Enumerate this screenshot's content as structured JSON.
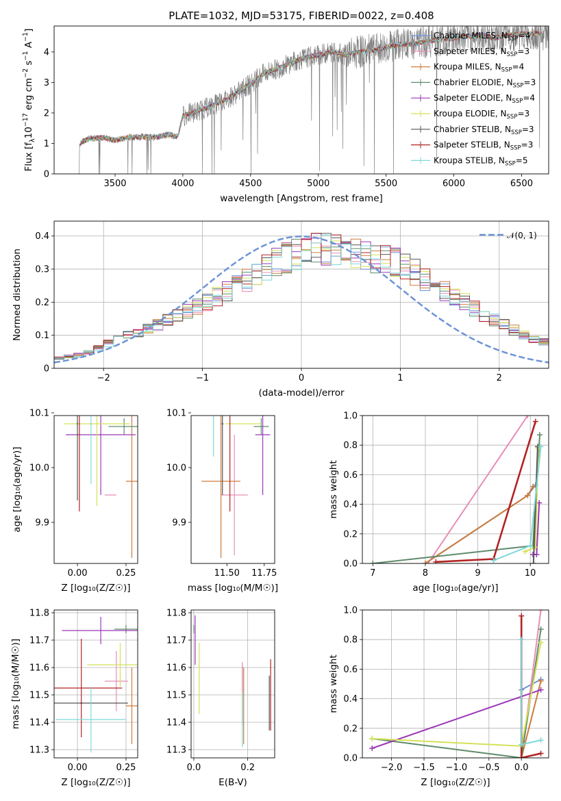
{
  "figure": {
    "title": "PLATE=1032, MJD=53175, FIBERID=0022, z=0.408"
  },
  "series_styles": [
    {
      "name": "Chabrier MILES, N_SSP=4",
      "label_main": "Chabrier MILES, N",
      "sub": "SSP",
      "label_tail": "=4",
      "color": "#6b93d6"
    },
    {
      "name": "Salpeter MILES, N_SSP=3",
      "label_main": "Salpeter MILES, N",
      "sub": "SSP",
      "label_tail": "=3",
      "color": "#e88cb5"
    },
    {
      "name": "Kroupa MILES, N_SSP=4",
      "label_main": "Kroupa MILES, N",
      "sub": "SSP",
      "label_tail": "=4",
      "color": "#cd7b3a"
    },
    {
      "name": "Chabrier ELODIE, N_SSP=3",
      "label_main": "Chabrier ELODIE, N",
      "sub": "SSP",
      "label_tail": "=3",
      "color": "#5f8a6a"
    },
    {
      "name": "Salpeter ELODIE, N_SSP=4",
      "label_main": "Salpeter ELODIE, N",
      "sub": "SSP",
      "label_tail": "=4",
      "color": "#9b36b7"
    },
    {
      "name": "Kroupa ELODIE, N_SSP=3",
      "label_main": "Kroupa ELODIE, N",
      "sub": "SSP",
      "label_tail": "=3",
      "color": "#d4e157"
    },
    {
      "name": "Chabrier STELIB, N_SSP=3",
      "label_main": "Chabrier STELIB, N",
      "sub": "SSP",
      "label_tail": "=3",
      "color": "#555555"
    },
    {
      "name": "Salpeter STELIB, N_SSP=3",
      "label_main": "Salpeter STELIB, N",
      "sub": "SSP",
      "label_tail": "=3",
      "color": "#b22222"
    },
    {
      "name": "Kroupa STELIB, N_SSP=5",
      "label_main": "Kroupa STELIB, N",
      "sub": "SSP",
      "label_tail": "=5",
      "color": "#7fd8d8"
    }
  ],
  "chart_data": [
    {
      "id": "spectrum",
      "type": "line",
      "title": "PLATE=1032, MJD=53175, FIBERID=0022, z=0.408",
      "xlabel": "wavelength [Angstrom, rest frame]",
      "ylabel_main": "Flux [f",
      "ylabel_sub": "λ",
      "ylabel_tail": "10",
      "ylabel_sup": "−17",
      "ylabel_rest": " erg cm",
      "ylabel_sup2": "−2",
      "ylabel_rest2": " s",
      "ylabel_sup3": "−1",
      "ylabel_rest3": " A",
      "ylabel_sup4": "−1",
      "ylabel_end": "]",
      "xlim": [
        3050,
        6700
      ],
      "ylim": [
        0,
        4.85
      ],
      "xticks": [
        3500,
        4000,
        4500,
        5000,
        5500,
        6000,
        6500
      ],
      "yticks": [
        0,
        1,
        2,
        3,
        4
      ],
      "grid": false,
      "legend_position": "top-right",
      "observed_color": "#808080",
      "continuum_anchor_points": [
        [
          3240,
          1.0
        ],
        [
          3300,
          1.15
        ],
        [
          3400,
          1.2
        ],
        [
          3500,
          1.1
        ],
        [
          3600,
          1.2
        ],
        [
          3700,
          1.22
        ],
        [
          3800,
          1.2
        ],
        [
          3900,
          1.3
        ],
        [
          3960,
          1.2
        ],
        [
          4000,
          1.9
        ],
        [
          4100,
          2.05
        ],
        [
          4200,
          2.2
        ],
        [
          4300,
          2.4
        ],
        [
          4400,
          2.65
        ],
        [
          4500,
          2.95
        ],
        [
          4600,
          3.3
        ],
        [
          4700,
          3.45
        ],
        [
          4800,
          3.65
        ],
        [
          4900,
          3.8
        ],
        [
          5000,
          3.9
        ],
        [
          5100,
          4.0
        ],
        [
          5200,
          3.9
        ],
        [
          5300,
          4.0
        ],
        [
          5400,
          4.05
        ],
        [
          5500,
          4.15
        ],
        [
          5600,
          4.25
        ],
        [
          5700,
          4.25
        ],
        [
          5800,
          4.35
        ],
        [
          5900,
          4.4
        ],
        [
          6000,
          4.45
        ],
        [
          6100,
          4.5
        ],
        [
          6200,
          4.55
        ],
        [
          6300,
          4.45
        ],
        [
          6400,
          4.55
        ],
        [
          6500,
          4.6
        ],
        [
          6600,
          4.6
        ]
      ]
    },
    {
      "id": "residuals",
      "type": "area",
      "title": "",
      "xlabel": "(data-model)/error",
      "ylabel": "Normed distribution",
      "xlim": [
        -2.5,
        2.5
      ],
      "ylim": [
        0,
        0.445
      ],
      "xticks": [
        -2,
        -1,
        0,
        1,
        2
      ],
      "xtick_labels": [
        "−2",
        "−1",
        "0",
        "1",
        "2"
      ],
      "yticks": [
        0.0,
        0.1,
        0.2,
        0.3,
        0.4
      ],
      "grid": true,
      "legend_position": "top-right",
      "reference_curve": {
        "name": "N(0,1)",
        "label": "𝒩(0, 1)",
        "color": "#6b93d6",
        "style": "dashed"
      },
      "bin_width": 0.1,
      "series_profile": [
        0.03,
        0.035,
        0.04,
        0.05,
        0.06,
        0.075,
        0.09,
        0.1,
        0.11,
        0.12,
        0.13,
        0.15,
        0.16,
        0.17,
        0.185,
        0.2,
        0.215,
        0.235,
        0.25,
        0.27,
        0.29,
        0.305,
        0.32,
        0.335,
        0.345,
        0.355,
        0.36,
        0.36,
        0.355,
        0.35,
        0.345,
        0.34,
        0.335,
        0.33,
        0.32,
        0.305,
        0.29,
        0.27,
        0.25,
        0.23,
        0.215,
        0.2,
        0.18,
        0.16,
        0.145,
        0.13,
        0.115,
        0.1,
        0.09,
        0.08
      ]
    },
    {
      "id": "age-vs-Z",
      "type": "scatter",
      "xlabel": "Z [log₁₀(Z/Z☉)]",
      "ylabel": "age  [log₁₀(age/yr)]",
      "xlim": [
        -0.12,
        0.31
      ],
      "ylim": [
        9.825,
        10.095
      ],
      "xticks": [
        0.0,
        0.25
      ],
      "xtick_labels": [
        "0.00",
        "0.25"
      ],
      "yticks": [
        9.9,
        10.0,
        10.1
      ],
      "yticks_labels": [
        "9.9",
        "10.0",
        "10.1"
      ],
      "grid": false,
      "points": [
        {
          "series": 0,
          "x": 0.0,
          "y": 10.08,
          "xerr": 0.0,
          "yerr": 0.0
        },
        {
          "series": 1,
          "x": 0.17,
          "y": 9.95,
          "xerr": 0.03,
          "yerr": 0.0
        },
        {
          "series": 2,
          "x": 0.28,
          "y": 9.975,
          "xerr": 0.03,
          "yerr": 0.14
        },
        {
          "series": 3,
          "x": 0.24,
          "y": 10.075,
          "xerr": 0.08,
          "yerr": 0.015
        },
        {
          "series": 4,
          "x": 0.12,
          "y": 10.06,
          "xerr": 0.18,
          "yerr": 0.11
        },
        {
          "series": 5,
          "x": 0.1,
          "y": 10.08,
          "xerr": 0.17,
          "yerr": 0.15
        },
        {
          "series": 6,
          "x": 0.0,
          "y": 10.14,
          "xerr": 0.21,
          "yerr": 0.2
        },
        {
          "series": 7,
          "x": 0.01,
          "y": 10.1,
          "xerr": 0.21,
          "yerr": 0.18
        },
        {
          "series": 8,
          "x": 0.07,
          "y": 10.06,
          "xerr": 0.0,
          "yerr": 0.09
        }
      ]
    },
    {
      "id": "age-vs-mass",
      "type": "scatter",
      "xlabel": "mass [log₁₀(M/M☉)]",
      "ylabel": "",
      "xlim": [
        11.26,
        11.82
      ],
      "ylim": [
        9.825,
        10.095
      ],
      "xticks": [
        11.5,
        11.75
      ],
      "xtick_labels": [
        "11.50",
        "11.75"
      ],
      "yticks": [
        9.9,
        10.0,
        10.1
      ],
      "yticks_labels": [
        "9.9",
        "10.0",
        "10.1"
      ],
      "grid": false,
      "points": [
        {
          "series": 0,
          "x": 11.47,
          "y": 10.08,
          "xerr": 0.0,
          "yerr": 0.0
        },
        {
          "series": 1,
          "x": 11.55,
          "y": 9.95,
          "xerr": 0.09,
          "yerr": 0.11
        },
        {
          "series": 2,
          "x": 11.46,
          "y": 9.975,
          "xerr": 0.13,
          "yerr": 0.14
        },
        {
          "series": 3,
          "x": 11.73,
          "y": 10.075,
          "xerr": 0.05,
          "yerr": 0.015
        },
        {
          "series": 4,
          "x": 11.74,
          "y": 10.06,
          "xerr": 0.05,
          "yerr": 0.11
        },
        {
          "series": 5,
          "x": 11.61,
          "y": 10.08,
          "xerr": 0.12,
          "yerr": 0.0
        },
        {
          "series": 6,
          "x": 11.47,
          "y": 10.14,
          "xerr": 0.2,
          "yerr": 0.19
        },
        {
          "series": 7,
          "x": 11.52,
          "y": 10.1,
          "xerr": 0.15,
          "yerr": 0.18
        },
        {
          "series": 8,
          "x": 11.41,
          "y": 10.1,
          "xerr": 0.08,
          "yerr": 0.08
        }
      ]
    },
    {
      "id": "weight-vs-age",
      "type": "line",
      "xlabel": "age  [log₁₀(age/yr)]",
      "ylabel": "mass weight",
      "xlim": [
        6.8,
        10.35
      ],
      "ylim": [
        0,
        1.0
      ],
      "xticks": [
        7,
        8,
        9,
        10
      ],
      "yticks": [
        0.0,
        0.2,
        0.4,
        0.6,
        0.8,
        1.0
      ],
      "grid": true,
      "series": [
        {
          "series": 0,
          "x": [
            8.0,
            9.95,
            10.1
          ],
          "y": [
            0.0,
            0.46,
            0.53
          ]
        },
        {
          "series": 1,
          "x": [
            8.05,
            9.95
          ],
          "y": [
            0.0,
            1.0
          ]
        },
        {
          "series": 2,
          "x": [
            8.0,
            9.95,
            10.05
          ],
          "y": [
            0.0,
            0.46,
            0.52
          ]
        },
        {
          "series": 3,
          "x": [
            7.0,
            10.05,
            10.18
          ],
          "y": [
            0.0,
            0.12,
            0.87
          ]
        },
        {
          "series": 4,
          "x": [
            10.05,
            10.12,
            10.17
          ],
          "y": [
            0.06,
            0.06,
            0.41
          ]
        },
        {
          "series": 5,
          "x": [
            9.9,
            10.1,
            10.15
          ],
          "y": [
            0.08,
            0.11,
            0.78
          ]
        },
        {
          "series": 6,
          "x": [
            10.06,
            10.14
          ],
          "y": [
            0.0,
            0.79
          ]
        },
        {
          "series": 7,
          "x": [
            8.2,
            9.3,
            10.1
          ],
          "y": [
            0.01,
            0.03,
            0.96
          ]
        },
        {
          "series": 8,
          "x": [
            9.3,
            10.0,
            10.2
          ],
          "y": [
            0.02,
            0.12,
            0.79
          ]
        }
      ]
    },
    {
      "id": "mass-vs-Z",
      "type": "scatter",
      "xlabel": "Z [log₁₀(Z/Z☉)]",
      "ylabel": "mass [log₁₀(M/M☉)]",
      "xlim": [
        -0.12,
        0.31
      ],
      "ylim": [
        11.27,
        11.81
      ],
      "xticks": [
        0.0,
        0.25
      ],
      "xtick_labels": [
        "0.00",
        "0.25"
      ],
      "yticks": [
        11.3,
        11.4,
        11.5,
        11.6,
        11.7,
        11.8
      ],
      "yticks_labels": [
        "11.3",
        "11.4",
        "11.5",
        "11.6",
        "11.7",
        "11.8"
      ],
      "grid": true,
      "points": [
        {
          "series": 0,
          "x": 0.02,
          "y": 11.47,
          "xerr": 0.0,
          "yerr": 0.0
        },
        {
          "series": 1,
          "x": 0.2,
          "y": 11.55,
          "xerr": 0.06,
          "yerr": 0.11
        },
        {
          "series": 2,
          "x": 0.28,
          "y": 11.46,
          "xerr": 0.03,
          "yerr": 0.14
        },
        {
          "series": 3,
          "x": 0.25,
          "y": 11.74,
          "xerr": 0.06,
          "yerr": 0.015
        },
        {
          "series": 4,
          "x": 0.12,
          "y": 11.735,
          "xerr": 0.2,
          "yerr": 0.05
        },
        {
          "series": 5,
          "x": 0.22,
          "y": 11.61,
          "xerr": 0.17,
          "yerr": 0.08
        },
        {
          "series": 6,
          "x": 0.05,
          "y": 11.47,
          "xerr": 0.21,
          "yerr": 0.0
        },
        {
          "series": 7,
          "x": 0.02,
          "y": 11.525,
          "xerr": 0.21,
          "yerr": 0.18
        },
        {
          "series": 8,
          "x": 0.07,
          "y": 11.41,
          "xerr": 0.18,
          "yerr": 0.12
        }
      ]
    },
    {
      "id": "mass-vs-EBV",
      "type": "scatter",
      "xlabel": "E(B-V)",
      "ylabel": "",
      "xlim": [
        -0.01,
        0.3
      ],
      "ylim": [
        11.27,
        11.81
      ],
      "xticks": [
        0.0,
        0.2
      ],
      "xtick_labels": [
        "0.0",
        "0.2"
      ],
      "yticks": [
        11.3,
        11.4,
        11.5,
        11.6,
        11.7,
        11.8
      ],
      "yticks_labels": [
        "11.3",
        "11.4",
        "11.5",
        "11.6",
        "11.7",
        "11.8"
      ],
      "grid": true,
      "points": [
        {
          "series": 0,
          "x": 0.18,
          "y": 11.5,
          "xerr": 0.0,
          "yerr": 0.11
        },
        {
          "series": 1,
          "x": 0.18,
          "y": 11.52,
          "xerr": 0.0,
          "yerr": 0.1
        },
        {
          "series": 2,
          "x": 0.185,
          "y": 11.46,
          "xerr": 0.0,
          "yerr": 0.14
        },
        {
          "series": 3,
          "x": 0.0,
          "y": 11.74,
          "xerr": 0.0,
          "yerr": 0.015
        },
        {
          "series": 4,
          "x": 0.005,
          "y": 11.7,
          "xerr": 0.0,
          "yerr": 0.09
        },
        {
          "series": 5,
          "x": 0.02,
          "y": 11.56,
          "xerr": 0.0,
          "yerr": 0.13
        },
        {
          "series": 6,
          "x": 0.28,
          "y": 11.47,
          "xerr": 0.0,
          "yerr": 0.1
        },
        {
          "series": 7,
          "x": 0.285,
          "y": 11.5,
          "xerr": 0.0,
          "yerr": 0.13
        },
        {
          "series": 8,
          "x": 0.18,
          "y": 11.41,
          "xerr": 0.0,
          "yerr": 0.1
        }
      ]
    },
    {
      "id": "weight-vs-Z",
      "type": "line",
      "xlabel": "Z [log₁₀(Z/Z☉)]",
      "ylabel": "mass weight",
      "xlim": [
        -2.45,
        0.42
      ],
      "ylim": [
        0,
        1.0
      ],
      "xticks": [
        -2.0,
        -1.5,
        -1.0,
        -0.5,
        0.0
      ],
      "xtick_labels": [
        "−2.0",
        "−1.5",
        "−1.0",
        "−0.5",
        "0.0"
      ],
      "yticks": [
        0.0,
        0.2,
        0.4,
        0.6,
        0.8,
        1.0
      ],
      "grid": true,
      "series": [
        {
          "series": 0,
          "x": [
            0.0,
            0.3
          ],
          "y": [
            0.46,
            0.53
          ]
        },
        {
          "series": 1,
          "x": [
            0.0,
            0.3
          ],
          "y": [
            0.0,
            1.0
          ]
        },
        {
          "series": 2,
          "x": [
            0.0,
            0.3
          ],
          "y": [
            0.0,
            0.52
          ]
        },
        {
          "series": 3,
          "x": [
            -2.3,
            0.0,
            0.3
          ],
          "y": [
            0.13,
            0.0,
            0.87
          ]
        },
        {
          "series": 4,
          "x": [
            -2.3,
            0.3
          ],
          "y": [
            0.065,
            0.46
          ]
        },
        {
          "series": 5,
          "x": [
            -2.3,
            0.0,
            0.3
          ],
          "y": [
            0.13,
            0.08,
            0.78
          ]
        },
        {
          "series": 6,
          "x": [
            0.0,
            0.0
          ],
          "y": [
            0.0,
            0.8
          ]
        },
        {
          "series": 7,
          "x": [
            0.0,
            0.0,
            0.3
          ],
          "y": [
            0.96,
            0.0,
            0.03
          ]
        },
        {
          "series": 8,
          "x": [
            0.0,
            0.0,
            0.3
          ],
          "y": [
            0.8,
            0.09,
            0.12
          ]
        }
      ]
    }
  ]
}
